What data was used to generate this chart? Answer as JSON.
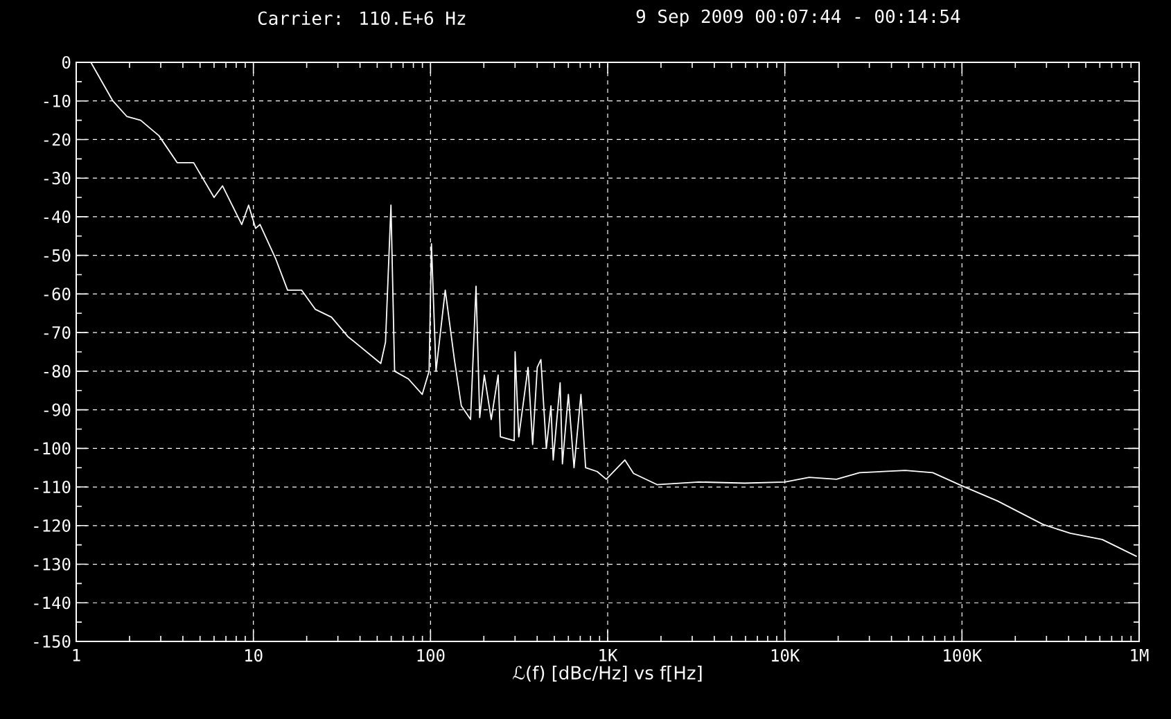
{
  "chart_data": {
    "type": "line",
    "title": "Carrier: 110.E+6 Hz",
    "subtitle": "9 Sep 2009  00:07:44 - 00:14:54",
    "xlabel": "ℒ(f) [dBc/Hz] vs f[Hz]",
    "log": "x",
    "grid": true,
    "xlim": [
      1,
      1000000
    ],
    "xticks": [
      1,
      10,
      100,
      {
        "value": 1000,
        "label": "1K"
      },
      {
        "value": 10000,
        "label": "10K"
      },
      {
        "value": 100000,
        "label": "100K"
      },
      {
        "value": 1000000,
        "label": "1M"
      }
    ],
    "ylim": [
      -150,
      0
    ],
    "yticks": [
      -150,
      -140,
      -130,
      -120,
      -110,
      -100,
      -90,
      -80,
      -70,
      -60,
      -50,
      -40,
      -30,
      -20,
      -10,
      0
    ],
    "series": [
      {
        "color": "#ffffff",
        "x": [
          1.21,
          1.61,
          1.93,
          2.31,
          2.93,
          3.72,
          4.6,
          6.0,
          6.7,
          8.6,
          9.4,
          10.3,
          10.9,
          13.4,
          15.6,
          18.7,
          22.4,
          27.6,
          34.1,
          52.4,
          55.7,
          59.8,
          62.7,
          75,
          89.8,
          98.2,
          101.2,
          107.4,
          121.1,
          136.4,
          149.3,
          168.3,
          180.7,
          189.6,
          201.2,
          220.2,
          240.8,
          248,
          296.7,
          300.3,
          315,
          355.3,
          377.2,
          400.4,
          419.7,
          450.6,
          478.3,
          492.7,
          539.1,
          555.3,
          600,
          645.8,
          706.4,
          750.8,
          872.4,
          981.9,
          1250,
          1400,
          1906,
          3264,
          5936,
          10000,
          13725,
          19570,
          26430,
          47860,
          68400,
          100000,
          158400,
          287000,
          409000,
          619000,
          970000
        ],
        "values": [
          0,
          -10,
          -14,
          -15,
          -19,
          -26,
          -26,
          -35,
          -32,
          -42,
          -37,
          -43,
          -42,
          -51,
          -59,
          -59,
          -64,
          -66,
          -71,
          -78,
          -72.5,
          -37,
          -80,
          -82,
          -86,
          -80,
          -47,
          -80,
          -59,
          -77,
          -89,
          -92.5,
          -58,
          -92,
          -81,
          -92.5,
          -81,
          -97,
          -98,
          -75,
          -97,
          -79,
          -99,
          -79,
          -77,
          -100,
          -89,
          -103,
          -83,
          -104,
          -86,
          -105,
          -86,
          -105,
          -106,
          -108,
          -103,
          -106.5,
          -109.4,
          -108.7,
          -109,
          -108.7,
          -107.5,
          -108,
          -106.3,
          -105.7,
          -106.3,
          -109.7,
          -113.6,
          -119.7,
          -122,
          -123.6,
          -128
        ]
      }
    ]
  }
}
